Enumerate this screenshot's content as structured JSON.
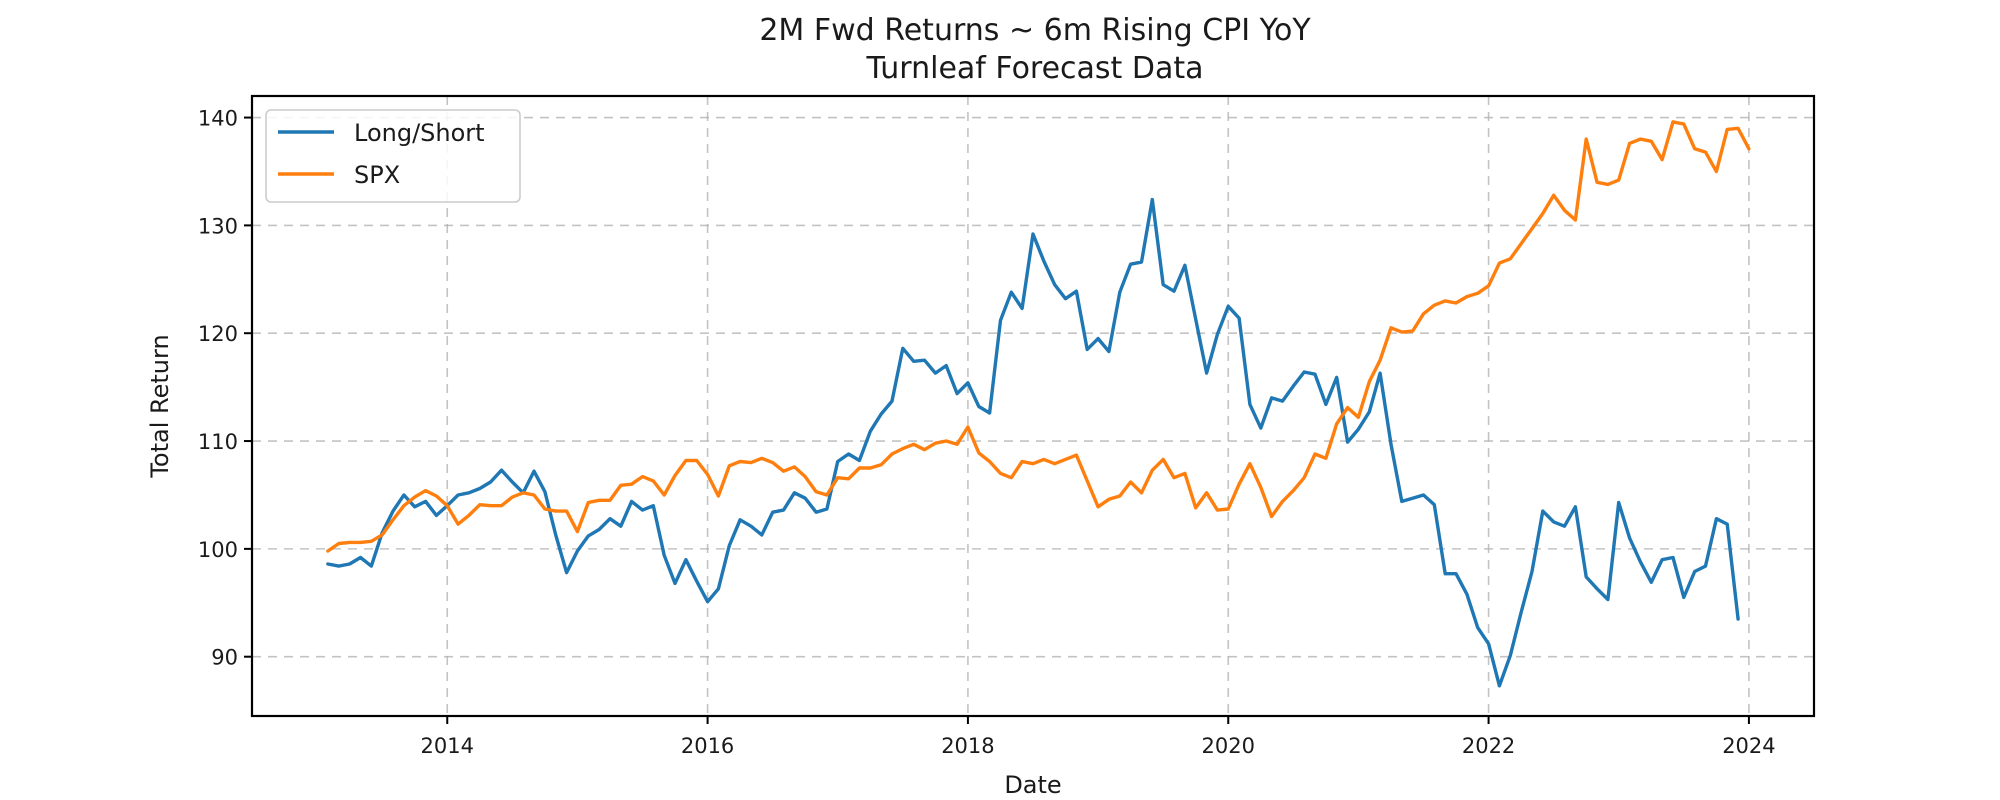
{
  "chart_data": {
    "type": "line",
    "title": "2M Fwd Returns ~ 6m Rising CPI YoY",
    "subtitle": "Turnleaf Forecast Data",
    "xlabel": "Date",
    "ylabel": "Total Return",
    "x_tick_labels": [
      "2014",
      "2016",
      "2018",
      "2020",
      "2022",
      "2024"
    ],
    "y_tick_labels": [
      "90",
      "100",
      "110",
      "120",
      "130",
      "140"
    ],
    "xlim": [
      2012.5,
      2024.5
    ],
    "ylim": [
      84.5,
      142.0
    ],
    "grid": true,
    "legend_position": "upper-left",
    "x_start": 2013.0833,
    "x_step_months": 1,
    "series": [
      {
        "name": "Long/Short",
        "color": "#1f77b4",
        "values": [
          98.6,
          98.4,
          98.6,
          99.2,
          98.4,
          101.5,
          103.5,
          105.0,
          103.9,
          104.4,
          103.1,
          104.0,
          105.0,
          105.2,
          105.6,
          106.2,
          107.3,
          106.2,
          105.2,
          107.2,
          105.3,
          101.3,
          97.8,
          99.8,
          101.2,
          101.8,
          102.8,
          102.1,
          104.4,
          103.6,
          104.0,
          99.4,
          96.8,
          99.0,
          97.0,
          95.1,
          96.3,
          100.3,
          102.7,
          102.1,
          101.3,
          103.4,
          103.6,
          105.2,
          104.7,
          103.4,
          103.7,
          108.1,
          108.8,
          108.2,
          110.9,
          112.5,
          113.7,
          118.6,
          117.4,
          117.5,
          116.3,
          117.0,
          114.4,
          115.4,
          113.2,
          112.6,
          121.2,
          123.8,
          122.3,
          129.2,
          126.7,
          124.5,
          123.2,
          123.9,
          118.5,
          119.5,
          118.3,
          123.8,
          126.4,
          126.6,
          132.4,
          124.5,
          123.9,
          126.3,
          121.3,
          116.3,
          119.9,
          122.5,
          121.4,
          113.4,
          111.2,
          114.0,
          113.7,
          115.1,
          116.4,
          116.2,
          113.4,
          115.9,
          109.9,
          111.1,
          112.7,
          116.3,
          109.7,
          104.4,
          104.7,
          105.0,
          104.1,
          97.7,
          97.7,
          95.8,
          92.7,
          91.2,
          87.3,
          90.1,
          94.1,
          97.9,
          103.5,
          102.5,
          102.1,
          103.9,
          97.4,
          96.3,
          95.3,
          104.3,
          101.0,
          98.8,
          96.9,
          99.0,
          99.2,
          95.5,
          97.9,
          98.4,
          102.8,
          102.3,
          93.5
        ]
      },
      {
        "name": "SPX",
        "color": "#ff7f0e",
        "values": [
          99.8,
          100.5,
          100.6,
          100.6,
          100.7,
          101.3,
          102.7,
          104.0,
          104.8,
          105.4,
          104.9,
          104.0,
          102.3,
          103.1,
          104.1,
          104.0,
          104.0,
          104.8,
          105.2,
          105.0,
          103.7,
          103.5,
          103.5,
          101.6,
          104.3,
          104.5,
          104.5,
          105.9,
          106.0,
          106.7,
          106.3,
          105.0,
          106.8,
          108.2,
          108.2,
          106.9,
          104.9,
          107.7,
          108.1,
          108.0,
          108.4,
          108.0,
          107.2,
          107.6,
          106.7,
          105.3,
          105.0,
          106.6,
          106.5,
          107.5,
          107.5,
          107.8,
          108.8,
          109.3,
          109.7,
          109.2,
          109.8,
          110.0,
          109.7,
          111.3,
          108.9,
          108.1,
          107.0,
          106.6,
          108.1,
          107.9,
          108.3,
          107.9,
          108.3,
          108.7,
          106.3,
          103.9,
          104.6,
          104.9,
          106.2,
          105.2,
          107.3,
          108.3,
          106.6,
          107.0,
          103.8,
          105.2,
          103.6,
          103.7,
          106.0,
          107.9,
          105.7,
          103.0,
          104.4,
          105.4,
          106.6,
          108.8,
          108.4,
          111.6,
          113.1,
          112.2,
          115.5,
          117.5,
          120.5,
          120.1,
          120.2,
          121.8,
          122.6,
          123.0,
          122.8,
          123.4,
          123.7,
          124.4,
          126.5,
          126.9,
          128.3,
          129.7,
          131.1,
          132.8,
          131.4,
          130.5,
          138.0,
          134.0,
          133.8,
          134.2,
          137.6,
          138.0,
          137.8,
          136.1,
          139.6,
          139.4,
          137.1,
          136.8,
          135.0,
          138.9,
          139.0,
          137.1
        ]
      }
    ]
  }
}
